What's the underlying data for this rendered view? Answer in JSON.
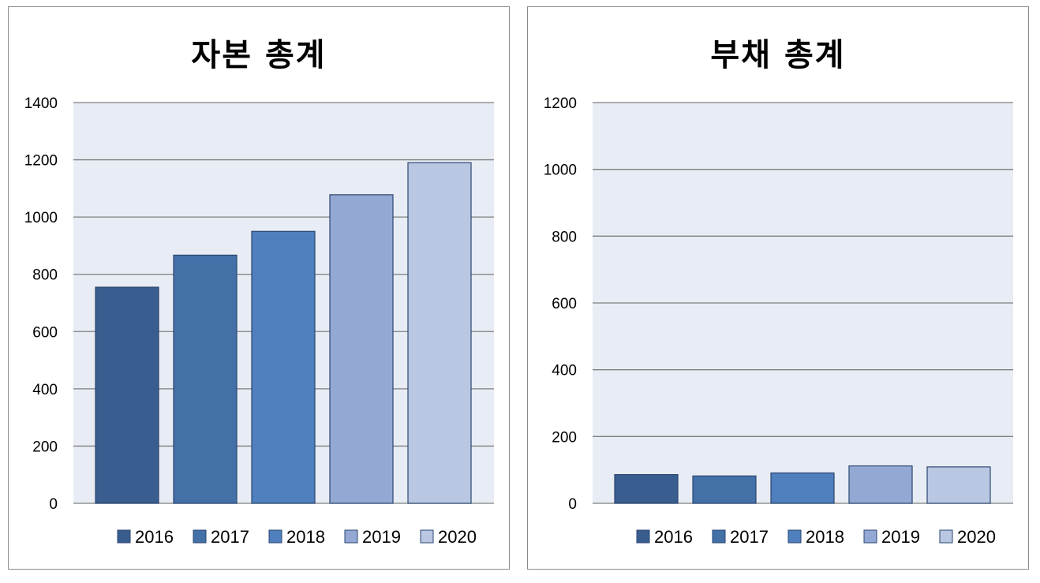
{
  "chart_data": [
    {
      "type": "bar",
      "title": "자본 총계",
      "categories": [
        "2016",
        "2017",
        "2018",
        "2019",
        "2020"
      ],
      "values": [
        755,
        867,
        950,
        1078,
        1190
      ],
      "ylim": [
        0,
        1400
      ],
      "yticks": [
        "0",
        "200",
        "400",
        "600",
        "800",
        "1000",
        "1200",
        "1400"
      ],
      "legend": [
        "2016",
        "2017",
        "2018",
        "2019",
        "2020"
      ],
      "legend_position": "bottom",
      "grid": true,
      "colors": [
        "#3a5d8f",
        "#4470a8",
        "#4f7fbd",
        "#93a9d3",
        "#b9c7e2"
      ],
      "plot_background": "#e8ecf4"
    },
    {
      "type": "bar",
      "title": "부채 총계",
      "categories": [
        "2016",
        "2017",
        "2018",
        "2019",
        "2020"
      ],
      "values": [
        86,
        82,
        91,
        112,
        109
      ],
      "ylim": [
        0,
        1200
      ],
      "yticks": [
        "0",
        "200",
        "400",
        "600",
        "800",
        "1000",
        "1200"
      ],
      "legend": [
        "2016",
        "2017",
        "2018",
        "2019",
        "2020"
      ],
      "legend_position": "bottom",
      "grid": true,
      "colors": [
        "#3a5d8f",
        "#4470a8",
        "#4f7fbd",
        "#93a9d3",
        "#b9c7e2"
      ],
      "plot_background": "#e8ecf4"
    }
  ]
}
